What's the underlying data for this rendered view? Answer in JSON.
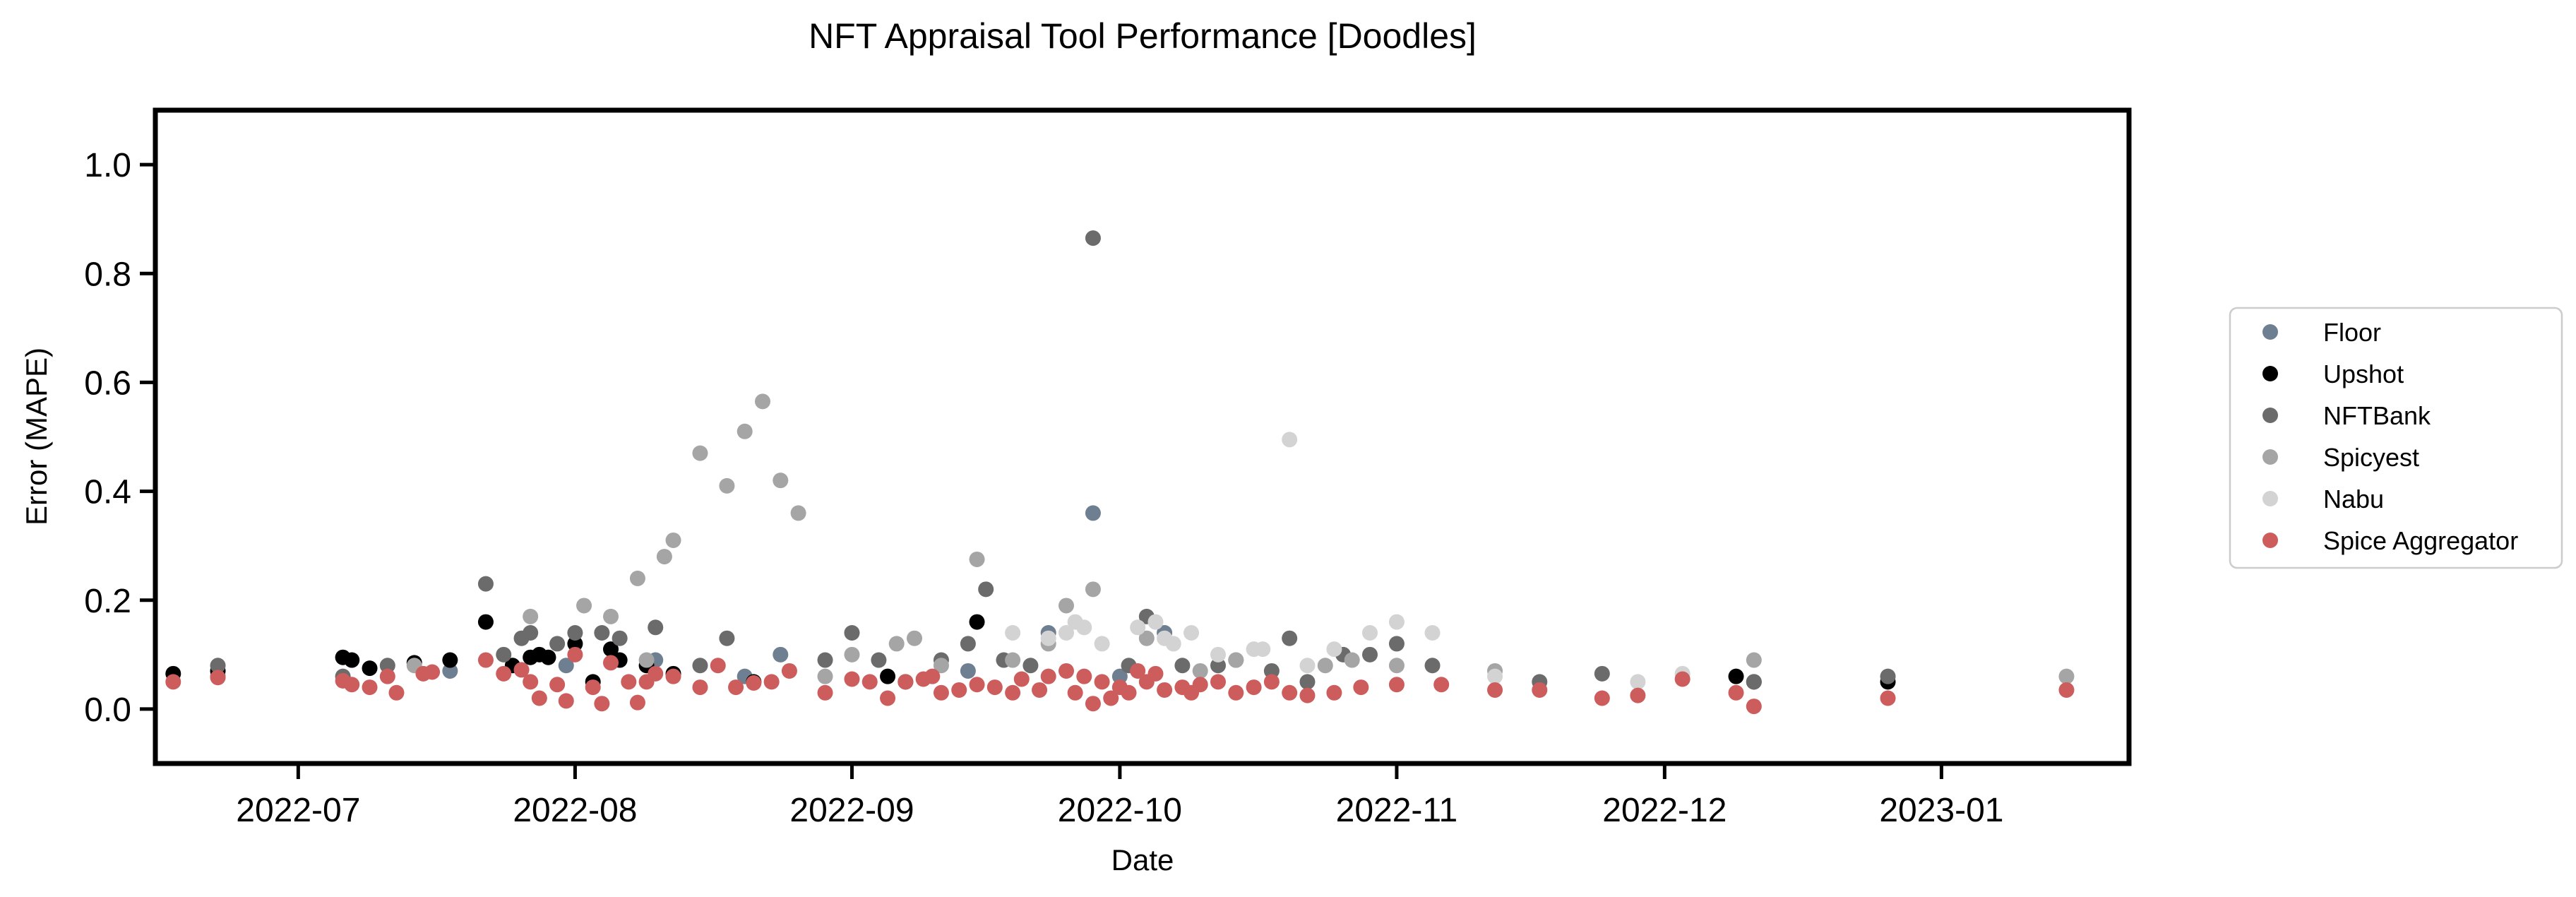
{
  "chart_data": {
    "type": "scatter",
    "title": "NFT Appraisal Tool Performance [Doodles]",
    "xlabel": "Date",
    "ylabel": "Error (MAPE)",
    "xlim": [
      "2022-06-15",
      "2023-01-22"
    ],
    "ylim": [
      -0.1,
      1.1
    ],
    "yticks": [
      0.0,
      0.2,
      0.4,
      0.6,
      0.8,
      1.0
    ],
    "ytick_labels": [
      "0.0",
      "0.2",
      "0.4",
      "0.6",
      "0.8",
      "1.0"
    ],
    "xticks": [
      "2022-07-01",
      "2022-08-01",
      "2022-09-01",
      "2022-10-01",
      "2022-11-01",
      "2022-12-01",
      "2023-01-01"
    ],
    "xtick_labels": [
      "2022-07",
      "2022-08",
      "2022-09",
      "2022-10",
      "2022-11",
      "2022-12",
      "2023-01"
    ],
    "grid": false,
    "legend_position": "right, outside plot",
    "series": [
      {
        "name": "Floor",
        "color": "#6e7f91",
        "points": [
          [
            "2022-06-22",
            0.06
          ],
          [
            "2022-07-18",
            0.07
          ],
          [
            "2022-07-31",
            0.08
          ],
          [
            "2022-08-10",
            0.09
          ],
          [
            "2022-08-20",
            0.06
          ],
          [
            "2022-08-24",
            0.1
          ],
          [
            "2022-09-14",
            0.07
          ],
          [
            "2022-09-23",
            0.14
          ],
          [
            "2022-09-28",
            0.36
          ],
          [
            "2022-10-01",
            0.06
          ],
          [
            "2022-10-06",
            0.14
          ],
          [
            "2022-10-14",
            0.09
          ]
        ]
      },
      {
        "name": "Upshot",
        "color": "#000000",
        "points": [
          [
            "2022-06-17",
            0.065
          ],
          [
            "2022-06-22",
            0.07
          ],
          [
            "2022-07-06",
            0.095
          ],
          [
            "2022-07-07",
            0.09
          ],
          [
            "2022-07-09",
            0.075
          ],
          [
            "2022-07-14",
            0.085
          ],
          [
            "2022-07-18",
            0.09
          ],
          [
            "2022-07-22",
            0.16
          ],
          [
            "2022-07-25",
            0.08
          ],
          [
            "2022-07-27",
            0.095
          ],
          [
            "2022-07-28",
            0.1
          ],
          [
            "2022-07-29",
            0.095
          ],
          [
            "2022-08-01",
            0.12
          ],
          [
            "2022-08-03",
            0.05
          ],
          [
            "2022-08-05",
            0.11
          ],
          [
            "2022-08-06",
            0.09
          ],
          [
            "2022-08-09",
            0.08
          ],
          [
            "2022-08-12",
            0.065
          ],
          [
            "2022-08-21",
            0.05
          ],
          [
            "2022-09-05",
            0.06
          ],
          [
            "2022-09-07",
            0.05
          ],
          [
            "2022-09-15",
            0.16
          ],
          [
            "2022-12-09",
            0.06
          ],
          [
            "2022-12-11",
            0.05
          ],
          [
            "2022-12-26",
            0.05
          ]
        ]
      },
      {
        "name": "NFTBank",
        "color": "#6b6b6b",
        "points": [
          [
            "2022-06-22",
            0.08
          ],
          [
            "2022-07-06",
            0.06
          ],
          [
            "2022-07-11",
            0.08
          ],
          [
            "2022-07-22",
            0.23
          ],
          [
            "2022-07-24",
            0.1
          ],
          [
            "2022-07-26",
            0.13
          ],
          [
            "2022-07-27",
            0.14
          ],
          [
            "2022-07-30",
            0.12
          ],
          [
            "2022-08-01",
            0.14
          ],
          [
            "2022-08-04",
            0.14
          ],
          [
            "2022-08-06",
            0.13
          ],
          [
            "2022-08-10",
            0.15
          ],
          [
            "2022-08-15",
            0.08
          ],
          [
            "2022-08-18",
            0.13
          ],
          [
            "2022-08-29",
            0.09
          ],
          [
            "2022-09-01",
            0.14
          ],
          [
            "2022-09-04",
            0.09
          ],
          [
            "2022-09-11",
            0.09
          ],
          [
            "2022-09-14",
            0.12
          ],
          [
            "2022-09-16",
            0.22
          ],
          [
            "2022-09-18",
            0.09
          ],
          [
            "2022-09-21",
            0.08
          ],
          [
            "2022-09-28",
            0.865
          ],
          [
            "2022-10-02",
            0.08
          ],
          [
            "2022-10-04",
            0.17
          ],
          [
            "2022-10-08",
            0.08
          ],
          [
            "2022-10-12",
            0.08
          ],
          [
            "2022-10-18",
            0.07
          ],
          [
            "2022-10-20",
            0.13
          ],
          [
            "2022-10-22",
            0.05
          ],
          [
            "2022-10-26",
            0.1
          ],
          [
            "2022-10-29",
            0.1
          ],
          [
            "2022-11-01",
            0.12
          ],
          [
            "2022-11-05",
            0.08
          ],
          [
            "2022-11-17",
            0.05
          ],
          [
            "2022-11-24",
            0.065
          ],
          [
            "2022-12-11",
            0.05
          ],
          [
            "2022-12-26",
            0.06
          ]
        ]
      },
      {
        "name": "Spicyest",
        "color": "#a5a5a5",
        "points": [
          [
            "2022-07-14",
            0.08
          ],
          [
            "2022-07-27",
            0.17
          ],
          [
            "2022-08-02",
            0.19
          ],
          [
            "2022-08-05",
            0.17
          ],
          [
            "2022-08-08",
            0.24
          ],
          [
            "2022-08-09",
            0.09
          ],
          [
            "2022-08-11",
            0.28
          ],
          [
            "2022-08-12",
            0.31
          ],
          [
            "2022-08-15",
            0.47
          ],
          [
            "2022-08-18",
            0.41
          ],
          [
            "2022-08-20",
            0.51
          ],
          [
            "2022-08-22",
            0.565
          ],
          [
            "2022-08-24",
            0.42
          ],
          [
            "2022-08-26",
            0.36
          ],
          [
            "2022-08-29",
            0.06
          ],
          [
            "2022-09-01",
            0.1
          ],
          [
            "2022-09-06",
            0.12
          ],
          [
            "2022-09-08",
            0.13
          ],
          [
            "2022-09-11",
            0.08
          ],
          [
            "2022-09-15",
            0.275
          ],
          [
            "2022-09-19",
            0.09
          ],
          [
            "2022-09-23",
            0.12
          ],
          [
            "2022-09-25",
            0.19
          ],
          [
            "2022-09-28",
            0.22
          ],
          [
            "2022-10-04",
            0.13
          ],
          [
            "2022-10-10",
            0.07
          ],
          [
            "2022-10-14",
            0.09
          ],
          [
            "2022-10-24",
            0.08
          ],
          [
            "2022-10-27",
            0.09
          ],
          [
            "2022-11-01",
            0.08
          ],
          [
            "2022-11-12",
            0.07
          ],
          [
            "2022-12-11",
            0.09
          ],
          [
            "2023-01-15",
            0.06
          ]
        ]
      },
      {
        "name": "Nabu",
        "color": "#d3d3d3",
        "points": [
          [
            "2022-09-19",
            0.14
          ],
          [
            "2022-09-23",
            0.13
          ],
          [
            "2022-09-25",
            0.14
          ],
          [
            "2022-09-26",
            0.16
          ],
          [
            "2022-09-27",
            0.15
          ],
          [
            "2022-09-29",
            0.12
          ],
          [
            "2022-10-03",
            0.15
          ],
          [
            "2022-10-05",
            0.16
          ],
          [
            "2022-10-06",
            0.13
          ],
          [
            "2022-10-07",
            0.12
          ],
          [
            "2022-10-09",
            0.14
          ],
          [
            "2022-10-12",
            0.1
          ],
          [
            "2022-10-16",
            0.11
          ],
          [
            "2022-10-17",
            0.11
          ],
          [
            "2022-10-20",
            0.495
          ],
          [
            "2022-10-22",
            0.08
          ],
          [
            "2022-10-25",
            0.11
          ],
          [
            "2022-10-29",
            0.14
          ],
          [
            "2022-11-01",
            0.16
          ],
          [
            "2022-11-05",
            0.14
          ],
          [
            "2022-11-12",
            0.06
          ],
          [
            "2022-11-28",
            0.05
          ],
          [
            "2022-12-03",
            0.065
          ]
        ]
      },
      {
        "name": "Spice Aggregator",
        "color": "#cd5c5c",
        "points": [
          [
            "2022-06-17",
            0.05
          ],
          [
            "2022-06-22",
            0.058
          ],
          [
            "2022-07-06",
            0.052
          ],
          [
            "2022-07-07",
            0.045
          ],
          [
            "2022-07-09",
            0.04
          ],
          [
            "2022-07-11",
            0.06
          ],
          [
            "2022-07-12",
            0.03
          ],
          [
            "2022-07-15",
            0.065
          ],
          [
            "2022-07-16",
            0.068
          ],
          [
            "2022-07-22",
            0.09
          ],
          [
            "2022-07-24",
            0.065
          ],
          [
            "2022-07-26",
            0.072
          ],
          [
            "2022-07-27",
            0.05
          ],
          [
            "2022-07-28",
            0.02
          ],
          [
            "2022-07-30",
            0.045
          ],
          [
            "2022-08-01",
            0.1
          ],
          [
            "2022-07-31",
            0.015
          ],
          [
            "2022-08-03",
            0.04
          ],
          [
            "2022-08-04",
            0.01
          ],
          [
            "2022-08-05",
            0.085
          ],
          [
            "2022-08-07",
            0.05
          ],
          [
            "2022-08-08",
            0.012
          ],
          [
            "2022-08-09",
            0.05
          ],
          [
            "2022-08-10",
            0.065
          ],
          [
            "2022-08-12",
            0.06
          ],
          [
            "2022-08-15",
            0.04
          ],
          [
            "2022-08-17",
            0.08
          ],
          [
            "2022-08-19",
            0.04
          ],
          [
            "2022-08-21",
            0.048
          ],
          [
            "2022-08-23",
            0.05
          ],
          [
            "2022-08-25",
            0.07
          ],
          [
            "2022-08-29",
            0.03
          ],
          [
            "2022-09-01",
            0.055
          ],
          [
            "2022-09-03",
            0.05
          ],
          [
            "2022-09-05",
            0.02
          ],
          [
            "2022-09-07",
            0.05
          ],
          [
            "2022-09-09",
            0.055
          ],
          [
            "2022-09-10",
            0.06
          ],
          [
            "2022-09-11",
            0.03
          ],
          [
            "2022-09-13",
            0.035
          ],
          [
            "2022-09-15",
            0.045
          ],
          [
            "2022-09-17",
            0.04
          ],
          [
            "2022-09-19",
            0.03
          ],
          [
            "2022-09-20",
            0.055
          ],
          [
            "2022-09-22",
            0.035
          ],
          [
            "2022-09-23",
            0.06
          ],
          [
            "2022-09-25",
            0.07
          ],
          [
            "2022-09-26",
            0.03
          ],
          [
            "2022-09-27",
            0.06
          ],
          [
            "2022-09-28",
            0.01
          ],
          [
            "2022-09-29",
            0.05
          ],
          [
            "2022-09-30",
            0.02
          ],
          [
            "2022-10-01",
            0.04
          ],
          [
            "2022-10-02",
            0.03
          ],
          [
            "2022-10-03",
            0.07
          ],
          [
            "2022-10-04",
            0.05
          ],
          [
            "2022-10-05",
            0.065
          ],
          [
            "2022-10-06",
            0.035
          ],
          [
            "2022-10-08",
            0.04
          ],
          [
            "2022-10-09",
            0.03
          ],
          [
            "2022-10-10",
            0.045
          ],
          [
            "2022-10-12",
            0.05
          ],
          [
            "2022-10-14",
            0.03
          ],
          [
            "2022-10-16",
            0.04
          ],
          [
            "2022-10-18",
            0.05
          ],
          [
            "2022-10-20",
            0.03
          ],
          [
            "2022-10-22",
            0.025
          ],
          [
            "2022-10-25",
            0.03
          ],
          [
            "2022-10-28",
            0.04
          ],
          [
            "2022-11-01",
            0.045
          ],
          [
            "2022-11-06",
            0.045
          ],
          [
            "2022-11-12",
            0.035
          ],
          [
            "2022-11-17",
            0.035
          ],
          [
            "2022-11-24",
            0.02
          ],
          [
            "2022-11-28",
            0.025
          ],
          [
            "2022-12-03",
            0.055
          ],
          [
            "2022-12-09",
            0.03
          ],
          [
            "2022-12-11",
            0.005
          ],
          [
            "2022-12-26",
            0.02
          ],
          [
            "2023-01-15",
            0.035
          ]
        ]
      }
    ]
  }
}
